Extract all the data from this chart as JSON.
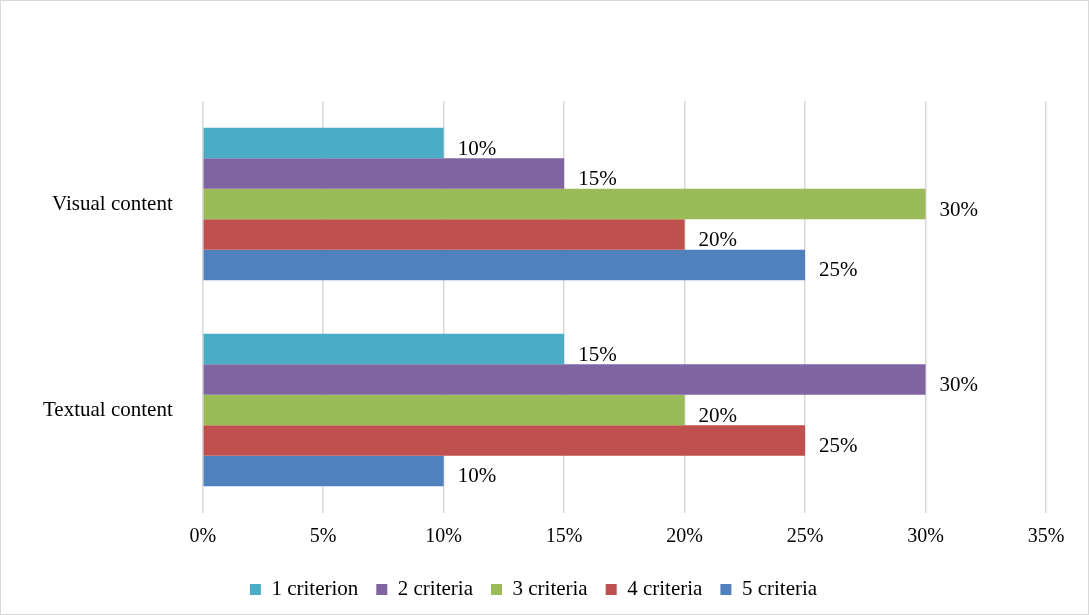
{
  "chart_data": {
    "type": "bar",
    "orientation": "horizontal",
    "categories": [
      "Visual content",
      "Textual content"
    ],
    "series": [
      {
        "name": "1 criterion",
        "color": "#4bacc6",
        "values": [
          10,
          15
        ],
        "value_labels": [
          "10%",
          "15%"
        ]
      },
      {
        "name": "2 criteria",
        "color": "#8064a2",
        "values": [
          15,
          30
        ],
        "value_labels": [
          "15%",
          "30%"
        ]
      },
      {
        "name": "3 criteria",
        "color": "#9bbb59",
        "values": [
          30,
          20
        ],
        "value_labels": [
          "30%",
          "20%"
        ]
      },
      {
        "name": "4 criteria",
        "color": "#c0504d",
        "values": [
          20,
          25
        ],
        "value_labels": [
          "20%",
          "25%"
        ]
      },
      {
        "name": "5 criteria",
        "color": "#4f81bd",
        "values": [
          25,
          10
        ],
        "value_labels": [
          "25%",
          "10%"
        ]
      }
    ],
    "xlim": [
      0,
      35
    ],
    "xticks": [
      {
        "value": 0,
        "label": "0%"
      },
      {
        "value": 5,
        "label": "5%"
      },
      {
        "value": 10,
        "label": "10%"
      },
      {
        "value": 15,
        "label": "15%"
      },
      {
        "value": 20,
        "label": "20%"
      },
      {
        "value": 25,
        "label": "25%"
      },
      {
        "value": 30,
        "label": "30%"
      },
      {
        "value": 35,
        "label": "35%"
      }
    ],
    "grid": "x",
    "legend": "bottom"
  }
}
